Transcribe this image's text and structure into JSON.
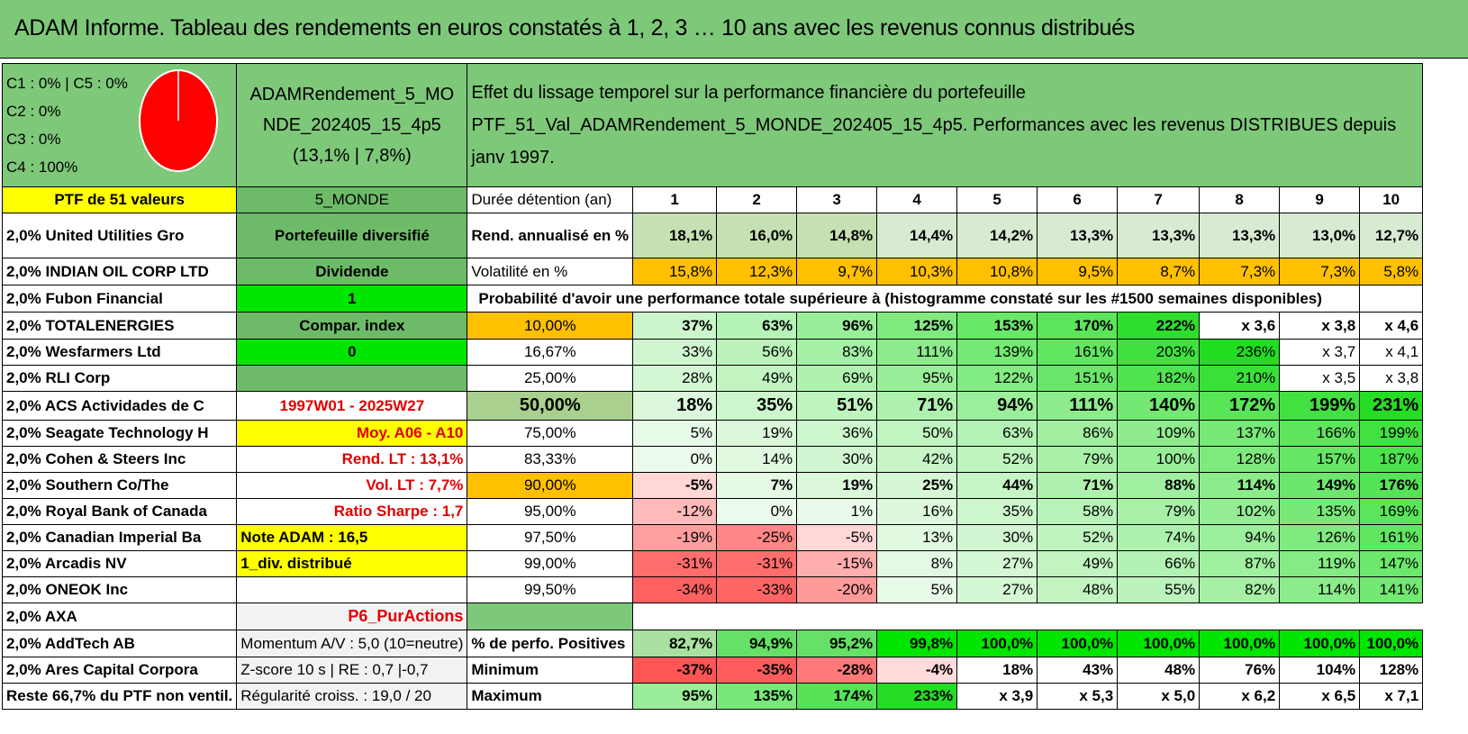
{
  "title": "ADAM Informe. Tableau des rendements en euros constatés à 1, 2, 3 … 10 ans avec les revenus connus distribués",
  "info": {
    "c1c5": "C1 : 0% | C5 : 0%",
    "c2": "C2 : 0%",
    "c3": "C3 : 0%",
    "c4": "C4 : 100%",
    "pie_color": "#ff0000"
  },
  "portfolio": {
    "name": "ADAMRendement_5_MONDE_202405_15_4p5",
    "stats": "(13,1% | 7,8%)",
    "header_line1": "Effet du lissage temporel sur la performance financière du portefeuille",
    "header_line2": "PTF_51_Val_ADAMRendement_5_MONDE_202405_15_4p5. Performances avec les revenus DISTRIBUES depuis janv 1997.",
    "count_label": "PTF de 51 valeurs",
    "region": "5_MONDE"
  },
  "labels": {
    "duree": "Durée détention (an)",
    "rend": "Rend. annualisé en %",
    "vol": "Volatilité en %",
    "proba": "Probabilité d'avoir une performance totale supérieure à (histogramme constaté sur les #1500 semaines disponibles)",
    "pos": "% de perfo. Positives",
    "min": "Minimum",
    "max": "Maximum"
  },
  "years": [
    "1",
    "2",
    "3",
    "4",
    "5",
    "6",
    "7",
    "8",
    "9",
    "10"
  ],
  "rend": [
    "18,1%",
    "16,0%",
    "14,8%",
    "14,4%",
    "14,2%",
    "13,3%",
    "13,3%",
    "13,3%",
    "13,0%",
    "12,7%"
  ],
  "vol": [
    "15,8%",
    "12,3%",
    "9,7%",
    "10,3%",
    "10,8%",
    "9,5%",
    "8,7%",
    "7,3%",
    "7,3%",
    "5,8%"
  ],
  "holdings": [
    "2,0% United Utilities Gro",
    "2,0% INDIAN OIL CORP LTD",
    "2,0% Fubon Financial",
    "2,0% TOTALENERGIES",
    "2,0% Wesfarmers Ltd",
    "2,0% RLI Corp",
    "2,0% ACS Actividades de C",
    "2,0% Seagate Technology H",
    "2,0% Cohen & Steers Inc",
    "2,0% Southern Co/The",
    "2,0% Royal Bank of Canada",
    "2,0% Canadian Imperial Ba",
    "2,0% Arcadis NV",
    "2,0% ONEOK Inc",
    "2,0% AXA",
    "2,0% AddTech AB",
    "2,0% Ares Capital Corpora",
    "Reste 66,7% du PTF non ventil."
  ],
  "side": {
    "diversifie": "Portefeuille diversifié",
    "dividende": "Dividende",
    "one": "1",
    "compar": "Compar. index",
    "zero": "0",
    "empty": "",
    "period": "1997W01 - 2025W27",
    "moy": "Moy. A06 - A10",
    "rend_lt": "Rend. LT : 13,1%",
    "vol_lt": "Vol. LT : 7,7%",
    "sharpe": "Ratio Sharpe : 1,7",
    "note": "Note ADAM : 16,5",
    "div": "1_div. distribué",
    "p6": "P6_PurActions",
    "momentum": "Momentum A/V : 5,0 (10=neutre)",
    "zscore": "Z-score 10 s | RE : 0,7 |-0,7",
    "regularite": "Régularité croiss. : 19,0 / 20"
  },
  "proba_rows": [
    {
      "p": "10,00%",
      "v": [
        "37%",
        "63%",
        "96%",
        "125%",
        "153%",
        "170%",
        "222%",
        "x 3,6",
        "x 3,8",
        "x 4,6"
      ]
    },
    {
      "p": "16,67%",
      "v": [
        "33%",
        "56%",
        "83%",
        "111%",
        "139%",
        "161%",
        "203%",
        "236%",
        "x 3,7",
        "x 4,1"
      ]
    },
    {
      "p": "25,00%",
      "v": [
        "28%",
        "49%",
        "69%",
        "95%",
        "122%",
        "151%",
        "182%",
        "210%",
        "x 3,5",
        "x 3,8"
      ]
    },
    {
      "p": "50,00%",
      "v": [
        "18%",
        "35%",
        "51%",
        "71%",
        "94%",
        "111%",
        "140%",
        "172%",
        "199%",
        "231%"
      ]
    },
    {
      "p": "75,00%",
      "v": [
        "5%",
        "19%",
        "36%",
        "50%",
        "63%",
        "86%",
        "109%",
        "137%",
        "166%",
        "199%"
      ]
    },
    {
      "p": "83,33%",
      "v": [
        "0%",
        "14%",
        "30%",
        "42%",
        "52%",
        "79%",
        "100%",
        "128%",
        "157%",
        "187%"
      ]
    },
    {
      "p": "90,00%",
      "v": [
        "-5%",
        "7%",
        "19%",
        "25%",
        "44%",
        "71%",
        "88%",
        "114%",
        "149%",
        "176%"
      ]
    },
    {
      "p": "95,00%",
      "v": [
        "-12%",
        "0%",
        "1%",
        "16%",
        "35%",
        "58%",
        "79%",
        "102%",
        "135%",
        "169%"
      ]
    },
    {
      "p": "97,50%",
      "v": [
        "-19%",
        "-25%",
        "-5%",
        "13%",
        "30%",
        "52%",
        "74%",
        "94%",
        "126%",
        "161%"
      ]
    },
    {
      "p": "99,00%",
      "v": [
        "-31%",
        "-31%",
        "-15%",
        "8%",
        "27%",
        "49%",
        "66%",
        "87%",
        "119%",
        "147%"
      ]
    },
    {
      "p": "99,50%",
      "v": [
        "-34%",
        "-33%",
        "-20%",
        "5%",
        "27%",
        "48%",
        "55%",
        "82%",
        "114%",
        "141%"
      ]
    }
  ],
  "pos": [
    "82,7%",
    "94,9%",
    "95,2%",
    "99,8%",
    "100,0%",
    "100,0%",
    "100,0%",
    "100,0%",
    "100,0%",
    "100,0%"
  ],
  "min": [
    "-37%",
    "-35%",
    "-28%",
    "-4%",
    "18%",
    "43%",
    "48%",
    "76%",
    "104%",
    "128%"
  ],
  "max": [
    "95%",
    "135%",
    "174%",
    "233%",
    "x 3,9",
    "x 5,3",
    "x 5,0",
    "x 6,2",
    "x 6,5",
    "x 7,1"
  ]
}
